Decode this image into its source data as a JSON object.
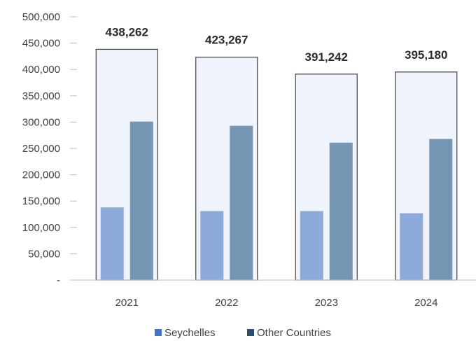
{
  "chart_data": {
    "type": "bar",
    "categories": [
      "2021",
      "2022",
      "2023",
      "2024"
    ],
    "totals": [
      438262,
      423267,
      391242,
      395180
    ],
    "total_labels": [
      "438,262",
      "423,267",
      "391,242",
      "395,180"
    ],
    "series": [
      {
        "name": "Seychelles",
        "values": [
          138000,
          131000,
          131000,
          127000
        ],
        "color": "#8eaadb"
      },
      {
        "name": "Other Countries",
        "values": [
          301000,
          293000,
          261000,
          268000
        ],
        "color": "#7595b3"
      }
    ],
    "legend_swatch_colors": [
      "#4472c4",
      "#2e4d6e"
    ],
    "total_box": {
      "fill": "#eef3fc",
      "stroke": "#404040"
    },
    "ylim": [
      0,
      500000
    ],
    "yticks": [
      0,
      50000,
      100000,
      150000,
      200000,
      250000,
      300000,
      350000,
      400000,
      450000,
      500000
    ],
    "ytick_labels": [
      "-",
      "50,000",
      "100,000",
      "150,000",
      "200,000",
      "250,000",
      "300,000",
      "350,000",
      "400,000",
      "450,000",
      "500,000"
    ],
    "grid": false,
    "legend": "bottom",
    "title": "",
    "xlabel": "",
    "ylabel": ""
  }
}
